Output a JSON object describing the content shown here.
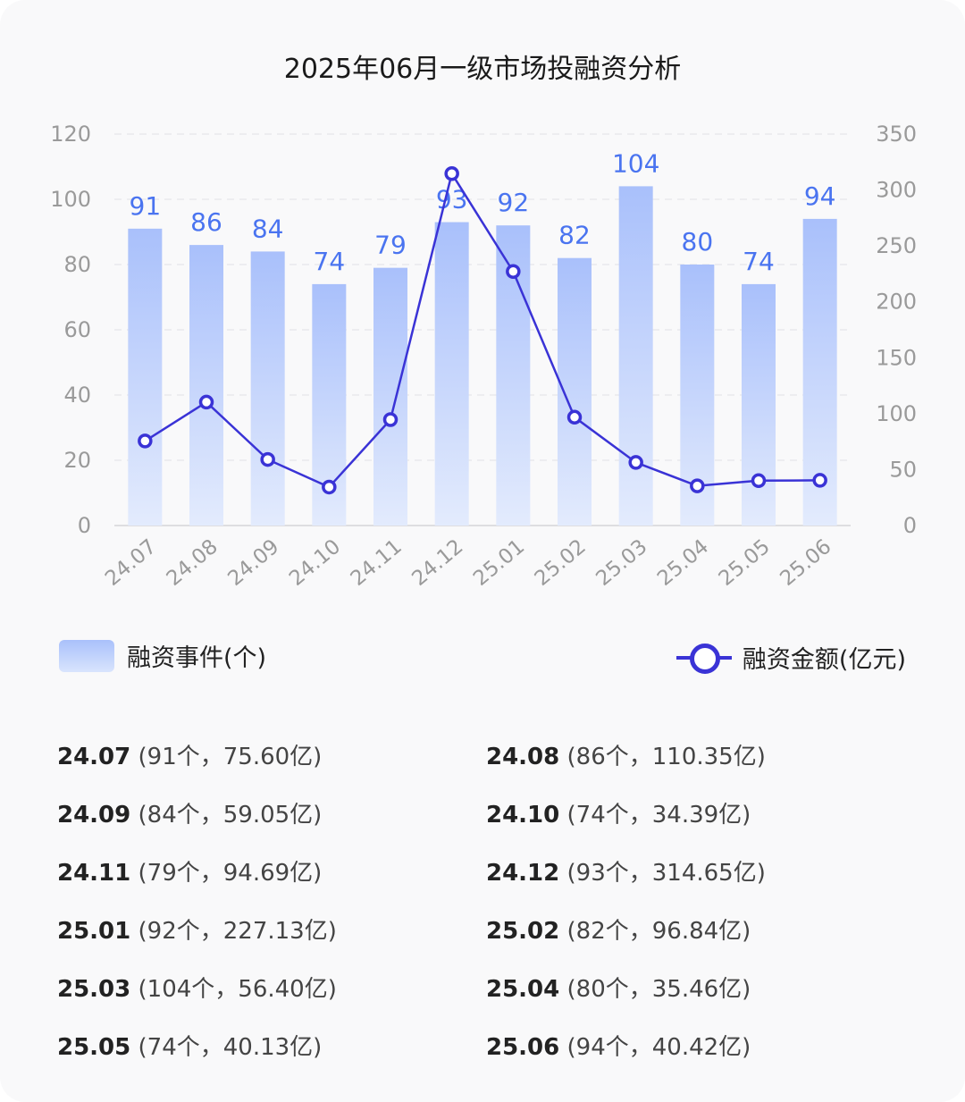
{
  "title": "2025年06月一级市场投融资分析",
  "legend": {
    "bar_label": "融资事件(个)",
    "line_label": "融资金额(亿元)"
  },
  "colors": {
    "bar_top": "#a9c0fb",
    "bar_bottom": "#e3ebfd",
    "line": "#3a33d6",
    "bar_value": "#4a74f0"
  },
  "chart_data": {
    "type": "bar+line",
    "categories": [
      "24.07",
      "24.08",
      "24.09",
      "24.10",
      "24.11",
      "24.12",
      "25.01",
      "25.02",
      "25.03",
      "25.04",
      "25.05",
      "25.06"
    ],
    "series": [
      {
        "name": "融资事件(个)",
        "type": "bar",
        "axis": "left",
        "values": [
          91,
          86,
          84,
          74,
          79,
          93,
          92,
          82,
          104,
          80,
          74,
          94
        ]
      },
      {
        "name": "融资金额(亿元)",
        "type": "line",
        "axis": "right",
        "values": [
          75.6,
          110.35,
          59.05,
          34.39,
          94.69,
          314.65,
          227.13,
          96.84,
          56.4,
          35.46,
          40.13,
          40.42
        ]
      }
    ],
    "y_left": {
      "min": 0,
      "max": 120,
      "ticks": [
        "0",
        "20",
        "40",
        "60",
        "80",
        "100",
        "120"
      ]
    },
    "y_right": {
      "min": 0,
      "max": 350,
      "ticks": [
        "0",
        "50",
        "100",
        "150",
        "200",
        "250",
        "300",
        "350"
      ]
    },
    "grid": true,
    "legend_position": "bottom"
  },
  "details": [
    {
      "month": "24.07",
      "info": "(91个，75.60亿)"
    },
    {
      "month": "24.08",
      "info": "(86个，110.35亿)"
    },
    {
      "month": "24.09",
      "info": "(84个，59.05亿)"
    },
    {
      "month": "24.10",
      "info": "(74个，34.39亿)"
    },
    {
      "month": "24.11",
      "info": "(79个，94.69亿)"
    },
    {
      "month": "24.12",
      "info": "(93个，314.65亿)"
    },
    {
      "month": "25.01",
      "info": "(92个，227.13亿)"
    },
    {
      "month": "25.02",
      "info": "(82个，96.84亿)"
    },
    {
      "month": "25.03",
      "info": "(104个，56.40亿)"
    },
    {
      "month": "25.04",
      "info": "(80个，35.46亿)"
    },
    {
      "month": "25.05",
      "info": "(74个，40.13亿)"
    },
    {
      "month": "25.06",
      "info": "(94个，40.42亿)"
    }
  ]
}
